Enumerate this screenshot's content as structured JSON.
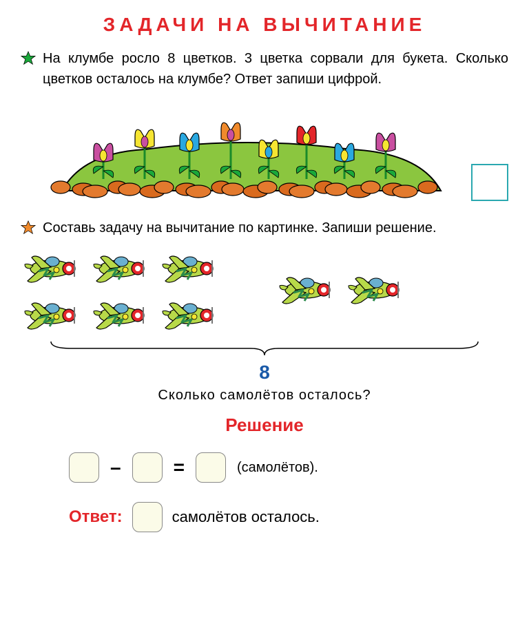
{
  "title": "ЗАДАЧИ  НА  ВЫЧИТАНИЕ",
  "title_color": "#e3262a",
  "problem1": {
    "star_color": "#1aa83a",
    "text": "На клумбе росло 8 цветков. 3 цветка сорвали для букета. Сколько цветков осталось на клумбе? Ответ запиши цифрой.",
    "flowerbed": {
      "ground_color": "#8bc63f",
      "ground_stroke": "#000000",
      "rock_colors": [
        "#e37a2e",
        "#d96a1e"
      ],
      "flowers": [
        {
          "petal": "#c94fa0",
          "center": "#f6e532"
        },
        {
          "petal": "#f6e532",
          "center": "#c94fa0"
        },
        {
          "petal": "#2aa8e0",
          "center": "#f6e532"
        },
        {
          "petal": "#f08a2c",
          "center": "#c94fa0"
        },
        {
          "petal": "#f6e532",
          "center": "#2aa8e0"
        },
        {
          "petal": "#e3262a",
          "center": "#f6e532"
        },
        {
          "petal": "#2aa8e0",
          "center": "#f6e532"
        },
        {
          "petal": "#c94fa0",
          "center": "#f6e532"
        }
      ],
      "stem_color": "#1a8a2a",
      "leaf_color": "#1aa83a"
    },
    "answer_box_border": "#2aa8b0"
  },
  "problem2": {
    "star_color": "#f08a2c",
    "text": "Составь задачу на вычитание по картинке. Запиши решение.",
    "planes": {
      "body_color": "#b8d949",
      "nose_color": "#e3262a",
      "cockpit_color": "#6ab0d0",
      "wing_accent": "#f6e532",
      "stripe_color": "#2a8a4a",
      "left_count": 6,
      "right_count": 2
    },
    "total": "8",
    "total_color": "#1a5aa8",
    "question": "Сколько самолётов осталось?"
  },
  "solution": {
    "title": "Решение",
    "title_color": "#e3262a",
    "minus": "–",
    "equals": "=",
    "unit": "(самолётов).",
    "answer_label": "Ответ:",
    "answer_label_color": "#e3262a",
    "answer_tail": "самолётов осталось.",
    "box_bg": "#fbfbe8",
    "box_border": "#888888"
  }
}
